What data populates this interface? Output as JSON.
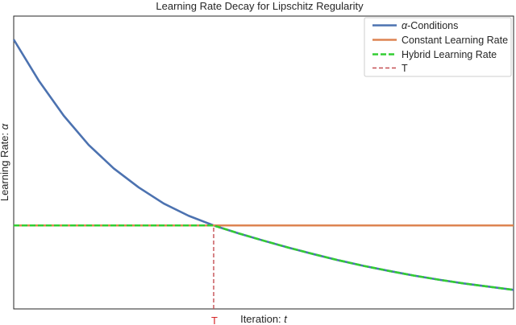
{
  "chart_data": {
    "type": "line",
    "title": "Learning Rate Decay for Lipschitz Regularity",
    "xlabel_prefix": "Iteration: ",
    "xlabel_var": "t",
    "ylabel_prefix": "Learning Rate: ",
    "ylabel_var": "α",
    "grid": false,
    "legend_position": "top-right",
    "x_range": [
      0,
      100
    ],
    "y_range": [
      0,
      1
    ],
    "T": 40,
    "T_label": "T",
    "series": [
      {
        "name_prefix": "α",
        "name_rest": "-Conditions",
        "color": "#4c72b0",
        "style": "solid",
        "x": [
          0,
          5,
          10,
          15,
          20,
          25,
          30,
          35,
          40,
          45,
          50,
          55,
          60,
          65,
          70,
          75,
          80,
          85,
          90,
          95,
          100
        ],
        "y": [
          0.92,
          0.78,
          0.66,
          0.56,
          0.48,
          0.415,
          0.36,
          0.318,
          0.285,
          0.258,
          0.233,
          0.209,
          0.187,
          0.166,
          0.147,
          0.13,
          0.114,
          0.1,
          0.087,
          0.076,
          0.065
        ]
      },
      {
        "name": "Constant Learning Rate",
        "color": "#dd8452",
        "style": "solid",
        "x": [
          0,
          100
        ],
        "y": [
          0.285,
          0.285
        ]
      },
      {
        "name": "Hybrid Learning Rate",
        "color": "#32cd32",
        "style": "dashed",
        "x": [
          0,
          40,
          45,
          50,
          55,
          60,
          65,
          70,
          75,
          80,
          85,
          90,
          95,
          100
        ],
        "y": [
          0.285,
          0.285,
          0.258,
          0.233,
          0.209,
          0.187,
          0.166,
          0.147,
          0.13,
          0.114,
          0.1,
          0.087,
          0.076,
          0.065
        ]
      },
      {
        "name": "T",
        "color": "#c44e52",
        "style": "dashed",
        "x": [
          40,
          40
        ],
        "y": [
          0,
          0.285
        ]
      }
    ]
  }
}
